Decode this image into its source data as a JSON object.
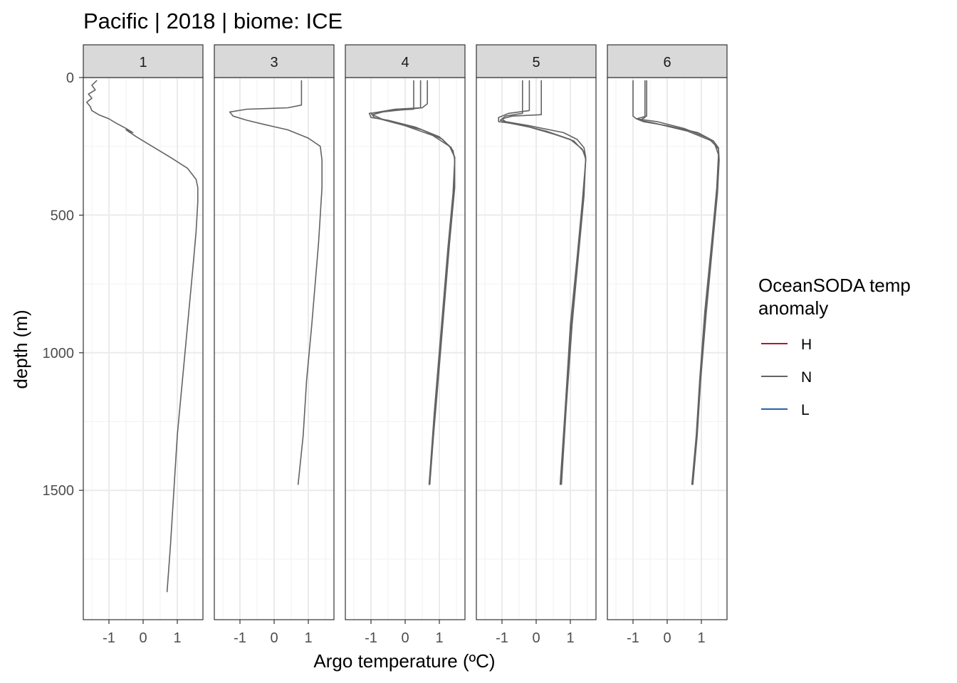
{
  "chart_data": {
    "type": "line",
    "title": "Pacific | 2018 | biome: ICE",
    "xlabel": "Argo temperature (ºC)",
    "ylabel": "depth (m)",
    "x_ticks": [
      -1,
      0,
      1
    ],
    "y_ticks": [
      0,
      500,
      1000,
      1500
    ],
    "xlim": [
      -1.75,
      1.75
    ],
    "ylim": [
      0,
      1970
    ],
    "y_reversed": true,
    "grid": true,
    "legend": {
      "title_line1": "OceanSODA temp",
      "title_line2": "anomaly",
      "placement": "right",
      "entries": [
        {
          "label": "H",
          "color": "#b2182b"
        },
        {
          "label": "N",
          "color": "#636363"
        },
        {
          "label": "L",
          "color": "#2166ac"
        }
      ]
    },
    "panels": [
      {
        "label": "1",
        "profiles": [
          [
            [
              -1.35,
              10
            ],
            [
              -1.5,
              28
            ],
            [
              -1.4,
              45
            ],
            [
              -1.6,
              60
            ],
            [
              -1.5,
              75
            ],
            [
              -1.65,
              90
            ],
            [
              -1.55,
              105
            ],
            [
              -1.5,
              120
            ],
            [
              -1.3,
              135
            ],
            [
              -1.0,
              150
            ],
            [
              -0.8,
              165
            ],
            [
              -0.5,
              185
            ],
            [
              -0.3,
              200
            ],
            [
              -0.5,
              190
            ],
            [
              -0.2,
              215
            ],
            [
              0.2,
              245
            ],
            [
              0.8,
              290
            ],
            [
              1.3,
              330
            ],
            [
              1.55,
              370
            ],
            [
              1.6,
              400
            ],
            [
              1.6,
              450
            ],
            [
              1.55,
              560
            ],
            [
              1.45,
              700
            ],
            [
              1.3,
              900
            ],
            [
              1.15,
              1100
            ],
            [
              1.0,
              1300
            ],
            [
              0.9,
              1500
            ],
            [
              0.8,
              1700
            ],
            [
              0.7,
              1870
            ]
          ]
        ]
      },
      {
        "label": "3",
        "profiles": [
          [
            [
              0.8,
              10
            ],
            [
              0.8,
              100
            ],
            [
              0.4,
              110
            ],
            [
              -0.8,
              115
            ],
            [
              -1.3,
              125
            ],
            [
              -1.2,
              140
            ],
            [
              -0.8,
              155
            ],
            [
              -0.3,
              170
            ],
            [
              0.4,
              190
            ],
            [
              1.0,
              220
            ],
            [
              1.35,
              250
            ],
            [
              1.4,
              300
            ],
            [
              1.4,
              400
            ],
            [
              1.3,
              600
            ],
            [
              1.1,
              900
            ],
            [
              0.95,
              1100
            ],
            [
              0.85,
              1300
            ],
            [
              0.7,
              1480
            ]
          ]
        ]
      },
      {
        "label": "4",
        "profiles": [
          [
            [
              0.25,
              10
            ],
            [
              0.25,
              115
            ],
            [
              -0.5,
              120
            ],
            [
              -0.95,
              135
            ],
            [
              -0.7,
              150
            ],
            [
              0.0,
              175
            ],
            [
              0.8,
              210
            ],
            [
              1.3,
              250
            ],
            [
              1.45,
              290
            ],
            [
              1.45,
              400
            ],
            [
              1.3,
              600
            ],
            [
              1.1,
              900
            ],
            [
              0.9,
              1200
            ],
            [
              0.7,
              1480
            ]
          ],
          [
            [
              0.45,
              10
            ],
            [
              0.45,
              110
            ],
            [
              -0.3,
              115
            ],
            [
              -1.0,
              130
            ],
            [
              -0.9,
              145
            ],
            [
              -0.3,
              165
            ],
            [
              0.5,
              190
            ],
            [
              1.1,
              225
            ],
            [
              1.4,
              265
            ],
            [
              1.45,
              300
            ],
            [
              1.4,
              420
            ],
            [
              1.25,
              620
            ],
            [
              1.05,
              920
            ],
            [
              0.85,
              1220
            ],
            [
              0.7,
              1480
            ]
          ],
          [
            [
              0.65,
              10
            ],
            [
              0.65,
              95
            ],
            [
              0.5,
              110
            ],
            [
              -0.3,
              120
            ],
            [
              -1.05,
              130
            ],
            [
              -1.0,
              145
            ],
            [
              -0.5,
              155
            ],
            [
              0.3,
              180
            ],
            [
              1.0,
              215
            ],
            [
              1.35,
              255
            ],
            [
              1.45,
              290
            ],
            [
              1.42,
              420
            ],
            [
              1.28,
              620
            ],
            [
              1.08,
              920
            ],
            [
              0.88,
              1220
            ],
            [
              0.72,
              1480
            ]
          ]
        ]
      },
      {
        "label": "5",
        "profiles": [
          [
            [
              -0.4,
              10
            ],
            [
              -0.4,
              130
            ],
            [
              -0.9,
              140
            ],
            [
              -1.05,
              155
            ],
            [
              -0.8,
              165
            ],
            [
              -0.2,
              180
            ],
            [
              0.5,
              205
            ],
            [
              1.1,
              230
            ],
            [
              1.4,
              270
            ],
            [
              1.45,
              300
            ],
            [
              1.35,
              450
            ],
            [
              1.2,
              650
            ],
            [
              1.0,
              900
            ],
            [
              0.85,
              1200
            ],
            [
              0.7,
              1480
            ]
          ],
          [
            [
              -0.2,
              10
            ],
            [
              -0.2,
              120
            ],
            [
              -0.8,
              130
            ],
            [
              -1.1,
              145
            ],
            [
              -1.1,
              160
            ],
            [
              -0.5,
              170
            ],
            [
              0.3,
              195
            ],
            [
              1.0,
              225
            ],
            [
              1.35,
              260
            ],
            [
              1.45,
              295
            ],
            [
              1.38,
              440
            ],
            [
              1.22,
              640
            ],
            [
              1.02,
              900
            ],
            [
              0.86,
              1200
            ],
            [
              0.72,
              1480
            ]
          ],
          [
            [
              0.15,
              10
            ],
            [
              0.15,
              135
            ],
            [
              -0.7,
              140
            ],
            [
              -1.0,
              150
            ],
            [
              -0.9,
              160
            ],
            [
              -0.2,
              175
            ],
            [
              0.8,
              200
            ],
            [
              1.2,
              225
            ],
            [
              1.4,
              255
            ],
            [
              1.45,
              290
            ],
            [
              1.4,
              430
            ],
            [
              1.25,
              630
            ],
            [
              1.05,
              900
            ],
            [
              0.88,
              1200
            ],
            [
              0.74,
              1480
            ]
          ]
        ]
      },
      {
        "label": "6",
        "profiles": [
          [
            [
              -1.0,
              10
            ],
            [
              -1.0,
              140
            ],
            [
              -0.9,
              150
            ],
            [
              -0.3,
              160
            ],
            [
              0.5,
              185
            ],
            [
              1.2,
              220
            ],
            [
              1.4,
              245
            ],
            [
              1.5,
              280
            ],
            [
              1.45,
              400
            ],
            [
              1.3,
              600
            ],
            [
              1.1,
              850
            ],
            [
              0.95,
              1100
            ],
            [
              0.85,
              1300
            ],
            [
              0.72,
              1480
            ]
          ],
          [
            [
              -0.65,
              10
            ],
            [
              -0.65,
              145
            ],
            [
              -0.8,
              155
            ],
            [
              -0.4,
              165
            ],
            [
              0.6,
              195
            ],
            [
              1.3,
              230
            ],
            [
              1.5,
              260
            ],
            [
              1.5,
              300
            ],
            [
              1.45,
              420
            ],
            [
              1.3,
              620
            ],
            [
              1.12,
              860
            ],
            [
              0.96,
              1100
            ],
            [
              0.86,
              1300
            ],
            [
              0.74,
              1480
            ]
          ],
          [
            [
              -0.6,
              10
            ],
            [
              -0.6,
              140
            ],
            [
              -0.9,
              150
            ],
            [
              -0.7,
              160
            ],
            [
              0.0,
              175
            ],
            [
              0.9,
              200
            ],
            [
              1.35,
              230
            ],
            [
              1.5,
              255
            ],
            [
              1.52,
              300
            ],
            [
              1.47,
              420
            ],
            [
              1.32,
              620
            ],
            [
              1.14,
              860
            ],
            [
              0.98,
              1100
            ],
            [
              0.88,
              1300
            ],
            [
              0.75,
              1480
            ]
          ]
        ]
      }
    ]
  }
}
